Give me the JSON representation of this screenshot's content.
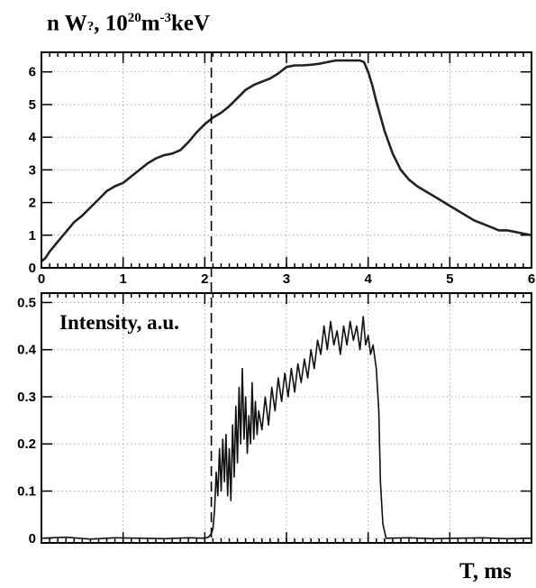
{
  "chart_data": [
    {
      "type": "line",
      "title": {
        "prefix": "n W",
        "mark": "?",
        "mid": ", 10",
        "exp1": "20",
        "m": "m",
        "exp2": "-3",
        "unit": "keV"
      },
      "xlim": [
        0,
        6
      ],
      "ylim": [
        0,
        6.6
      ],
      "x_ticks": [
        "0",
        "1",
        "2",
        "3",
        "4",
        "5",
        "6"
      ],
      "y_ticks": [
        "0",
        "1",
        "2",
        "3",
        "4",
        "5",
        "6"
      ],
      "grid": true,
      "vline_x": 2.08,
      "series": [
        {
          "points": [
            [
              0,
              0.2
            ],
            [
              0.05,
              0.3
            ],
            [
              0.1,
              0.5
            ],
            [
              0.2,
              0.8
            ],
            [
              0.3,
              1.1
            ],
            [
              0.4,
              1.4
            ],
            [
              0.5,
              1.6
            ],
            [
              0.6,
              1.85
            ],
            [
              0.7,
              2.1
            ],
            [
              0.8,
              2.35
            ],
            [
              0.9,
              2.5
            ],
            [
              1.0,
              2.6
            ],
            [
              1.1,
              2.8
            ],
            [
              1.2,
              3.0
            ],
            [
              1.3,
              3.2
            ],
            [
              1.4,
              3.35
            ],
            [
              1.5,
              3.45
            ],
            [
              1.6,
              3.5
            ],
            [
              1.7,
              3.6
            ],
            [
              1.8,
              3.85
            ],
            [
              1.9,
              4.15
            ],
            [
              2.0,
              4.4
            ],
            [
              2.1,
              4.6
            ],
            [
              2.2,
              4.75
            ],
            [
              2.3,
              4.95
            ],
            [
              2.4,
              5.2
            ],
            [
              2.5,
              5.45
            ],
            [
              2.6,
              5.6
            ],
            [
              2.7,
              5.7
            ],
            [
              2.8,
              5.8
            ],
            [
              2.9,
              5.95
            ],
            [
              3.0,
              6.15
            ],
            [
              3.1,
              6.2
            ],
            [
              3.2,
              6.2
            ],
            [
              3.3,
              6.22
            ],
            [
              3.4,
              6.25
            ],
            [
              3.5,
              6.3
            ],
            [
              3.6,
              6.35
            ],
            [
              3.7,
              6.35
            ],
            [
              3.8,
              6.35
            ],
            [
              3.9,
              6.35
            ],
            [
              3.95,
              6.3
            ],
            [
              4.0,
              6.0
            ],
            [
              4.05,
              5.6
            ],
            [
              4.1,
              5.1
            ],
            [
              4.2,
              4.2
            ],
            [
              4.3,
              3.5
            ],
            [
              4.4,
              3.0
            ],
            [
              4.5,
              2.7
            ],
            [
              4.6,
              2.5
            ],
            [
              4.7,
              2.35
            ],
            [
              4.8,
              2.2
            ],
            [
              4.9,
              2.05
            ],
            [
              5.0,
              1.9
            ],
            [
              5.1,
              1.75
            ],
            [
              5.2,
              1.6
            ],
            [
              5.3,
              1.45
            ],
            [
              5.4,
              1.35
            ],
            [
              5.5,
              1.25
            ],
            [
              5.6,
              1.15
            ],
            [
              5.7,
              1.15
            ],
            [
              5.8,
              1.1
            ],
            [
              5.9,
              1.05
            ],
            [
              6.0,
              1.0
            ]
          ]
        }
      ]
    },
    {
      "type": "line",
      "title": "Intensity, a.u.",
      "xlabel": "T, ms",
      "xlim": [
        0,
        6
      ],
      "ylim": [
        -0.01,
        0.52
      ],
      "y_ticks": [
        "0",
        "0.1",
        "0.2",
        "0.3",
        "0.4",
        "0.5"
      ],
      "grid": true,
      "vline_x": 2.08,
      "series": [
        {
          "points": [
            [
              0,
              0
            ],
            [
              0.3,
              0.002
            ],
            [
              0.6,
              -0.002
            ],
            [
              0.9,
              0.001
            ],
            [
              1.2,
              0
            ],
            [
              1.5,
              -0.001
            ],
            [
              1.8,
              0.001
            ],
            [
              2.0,
              0
            ],
            [
              2.05,
              0.003
            ],
            [
              2.08,
              0.01
            ],
            [
              2.1,
              0.02
            ],
            [
              2.12,
              0.06
            ],
            [
              2.14,
              0.14
            ],
            [
              2.16,
              0.09
            ],
            [
              2.18,
              0.19
            ],
            [
              2.2,
              0.1
            ],
            [
              2.22,
              0.21
            ],
            [
              2.24,
              0.12
            ],
            [
              2.26,
              0.22
            ],
            [
              2.28,
              0.09
            ],
            [
              2.3,
              0.19
            ],
            [
              2.32,
              0.08
            ],
            [
              2.34,
              0.24
            ],
            [
              2.36,
              0.13
            ],
            [
              2.38,
              0.28
            ],
            [
              2.4,
              0.16
            ],
            [
              2.42,
              0.32
            ],
            [
              2.44,
              0.2
            ],
            [
              2.46,
              0.36
            ],
            [
              2.48,
              0.21
            ],
            [
              2.5,
              0.3
            ],
            [
              2.52,
              0.18
            ],
            [
              2.54,
              0.26
            ],
            [
              2.56,
              0.2
            ],
            [
              2.58,
              0.33
            ],
            [
              2.6,
              0.21
            ],
            [
              2.62,
              0.29
            ],
            [
              2.64,
              0.22
            ],
            [
              2.66,
              0.27
            ],
            [
              2.7,
              0.23
            ],
            [
              2.74,
              0.3
            ],
            [
              2.78,
              0.24
            ],
            [
              2.82,
              0.32
            ],
            [
              2.86,
              0.27
            ],
            [
              2.9,
              0.34
            ],
            [
              2.94,
              0.29
            ],
            [
              2.98,
              0.35
            ],
            [
              3.02,
              0.3
            ],
            [
              3.06,
              0.36
            ],
            [
              3.1,
              0.31
            ],
            [
              3.14,
              0.37
            ],
            [
              3.18,
              0.33
            ],
            [
              3.22,
              0.38
            ],
            [
              3.26,
              0.34
            ],
            [
              3.3,
              0.4
            ],
            [
              3.34,
              0.36
            ],
            [
              3.38,
              0.42
            ],
            [
              3.42,
              0.39
            ],
            [
              3.46,
              0.45
            ],
            [
              3.5,
              0.4
            ],
            [
              3.54,
              0.46
            ],
            [
              3.58,
              0.41
            ],
            [
              3.62,
              0.44
            ],
            [
              3.66,
              0.39
            ],
            [
              3.7,
              0.45
            ],
            [
              3.74,
              0.41
            ],
            [
              3.78,
              0.46
            ],
            [
              3.82,
              0.42
            ],
            [
              3.86,
              0.45
            ],
            [
              3.9,
              0.4
            ],
            [
              3.94,
              0.47
            ],
            [
              3.97,
              0.41
            ],
            [
              4.0,
              0.43
            ],
            [
              4.03,
              0.39
            ],
            [
              4.06,
              0.41
            ],
            [
              4.1,
              0.36
            ],
            [
              4.13,
              0.27
            ],
            [
              4.15,
              0.12
            ],
            [
              4.18,
              0.03
            ],
            [
              4.22,
              0
            ],
            [
              4.5,
              0.001
            ],
            [
              4.8,
              -0.001
            ],
            [
              5.1,
              0
            ],
            [
              5.4,
              0.001
            ],
            [
              5.7,
              -0.001
            ],
            [
              6.0,
              0
            ]
          ]
        }
      ]
    }
  ]
}
